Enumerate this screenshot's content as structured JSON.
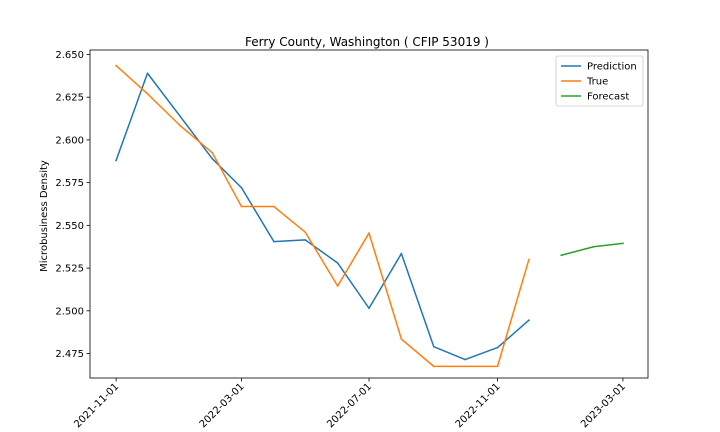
{
  "chart_data": {
    "type": "line",
    "title": "Ferry County, Washington ( CFIP 53019 )",
    "xlabel": "",
    "ylabel": "Microbusiness Density",
    "x_type": "date",
    "xlim": [
      "2021-10-07",
      "2023-03-25"
    ],
    "ylim": [
      2.4607,
      2.6526
    ],
    "x_ticks": [
      "2021-11-01",
      "2022-03-01",
      "2022-07-01",
      "2022-11-01",
      "2023-03-01"
    ],
    "y_ticks": [
      2.475,
      2.5,
      2.525,
      2.55,
      2.575,
      2.6,
      2.625,
      2.65
    ],
    "y_tick_labels": [
      "2.475",
      "2.500",
      "2.525",
      "2.550",
      "2.575",
      "2.600",
      "2.625",
      "2.650"
    ],
    "grid": false,
    "legend_position": "top-right",
    "series": [
      {
        "name": "Prediction",
        "color": "#1f77b4",
        "x": [
          "2021-11-01",
          "2021-12-01",
          "2022-01-01",
          "2022-02-01",
          "2022-03-01",
          "2022-04-01",
          "2022-05-01",
          "2022-06-01",
          "2022-07-01",
          "2022-08-01",
          "2022-09-01",
          "2022-10-01",
          "2022-11-01",
          "2022-12-01"
        ],
        "y": [
          2.588,
          2.639,
          2.614,
          2.589,
          2.572,
          2.5405,
          2.5415,
          2.528,
          2.5015,
          2.5335,
          2.479,
          2.4715,
          2.4785,
          2.4945
        ]
      },
      {
        "name": "True",
        "color": "#ff7f0e",
        "x": [
          "2021-11-01",
          "2021-12-01",
          "2022-01-01",
          "2022-02-01",
          "2022-03-01",
          "2022-04-01",
          "2022-05-01",
          "2022-06-01",
          "2022-07-01",
          "2022-08-01",
          "2022-09-01",
          "2022-10-01",
          "2022-11-01",
          "2022-12-01"
        ],
        "y": [
          2.6435,
          2.627,
          2.6085,
          2.5925,
          2.561,
          2.561,
          2.546,
          2.5145,
          2.5455,
          2.4835,
          2.4675,
          2.4675,
          2.4675,
          2.53
        ]
      },
      {
        "name": "Forecast",
        "color": "#2ca02c",
        "x": [
          "2023-01-01",
          "2023-02-01",
          "2023-03-01"
        ],
        "y": [
          2.5325,
          2.5375,
          2.5395
        ]
      }
    ]
  }
}
